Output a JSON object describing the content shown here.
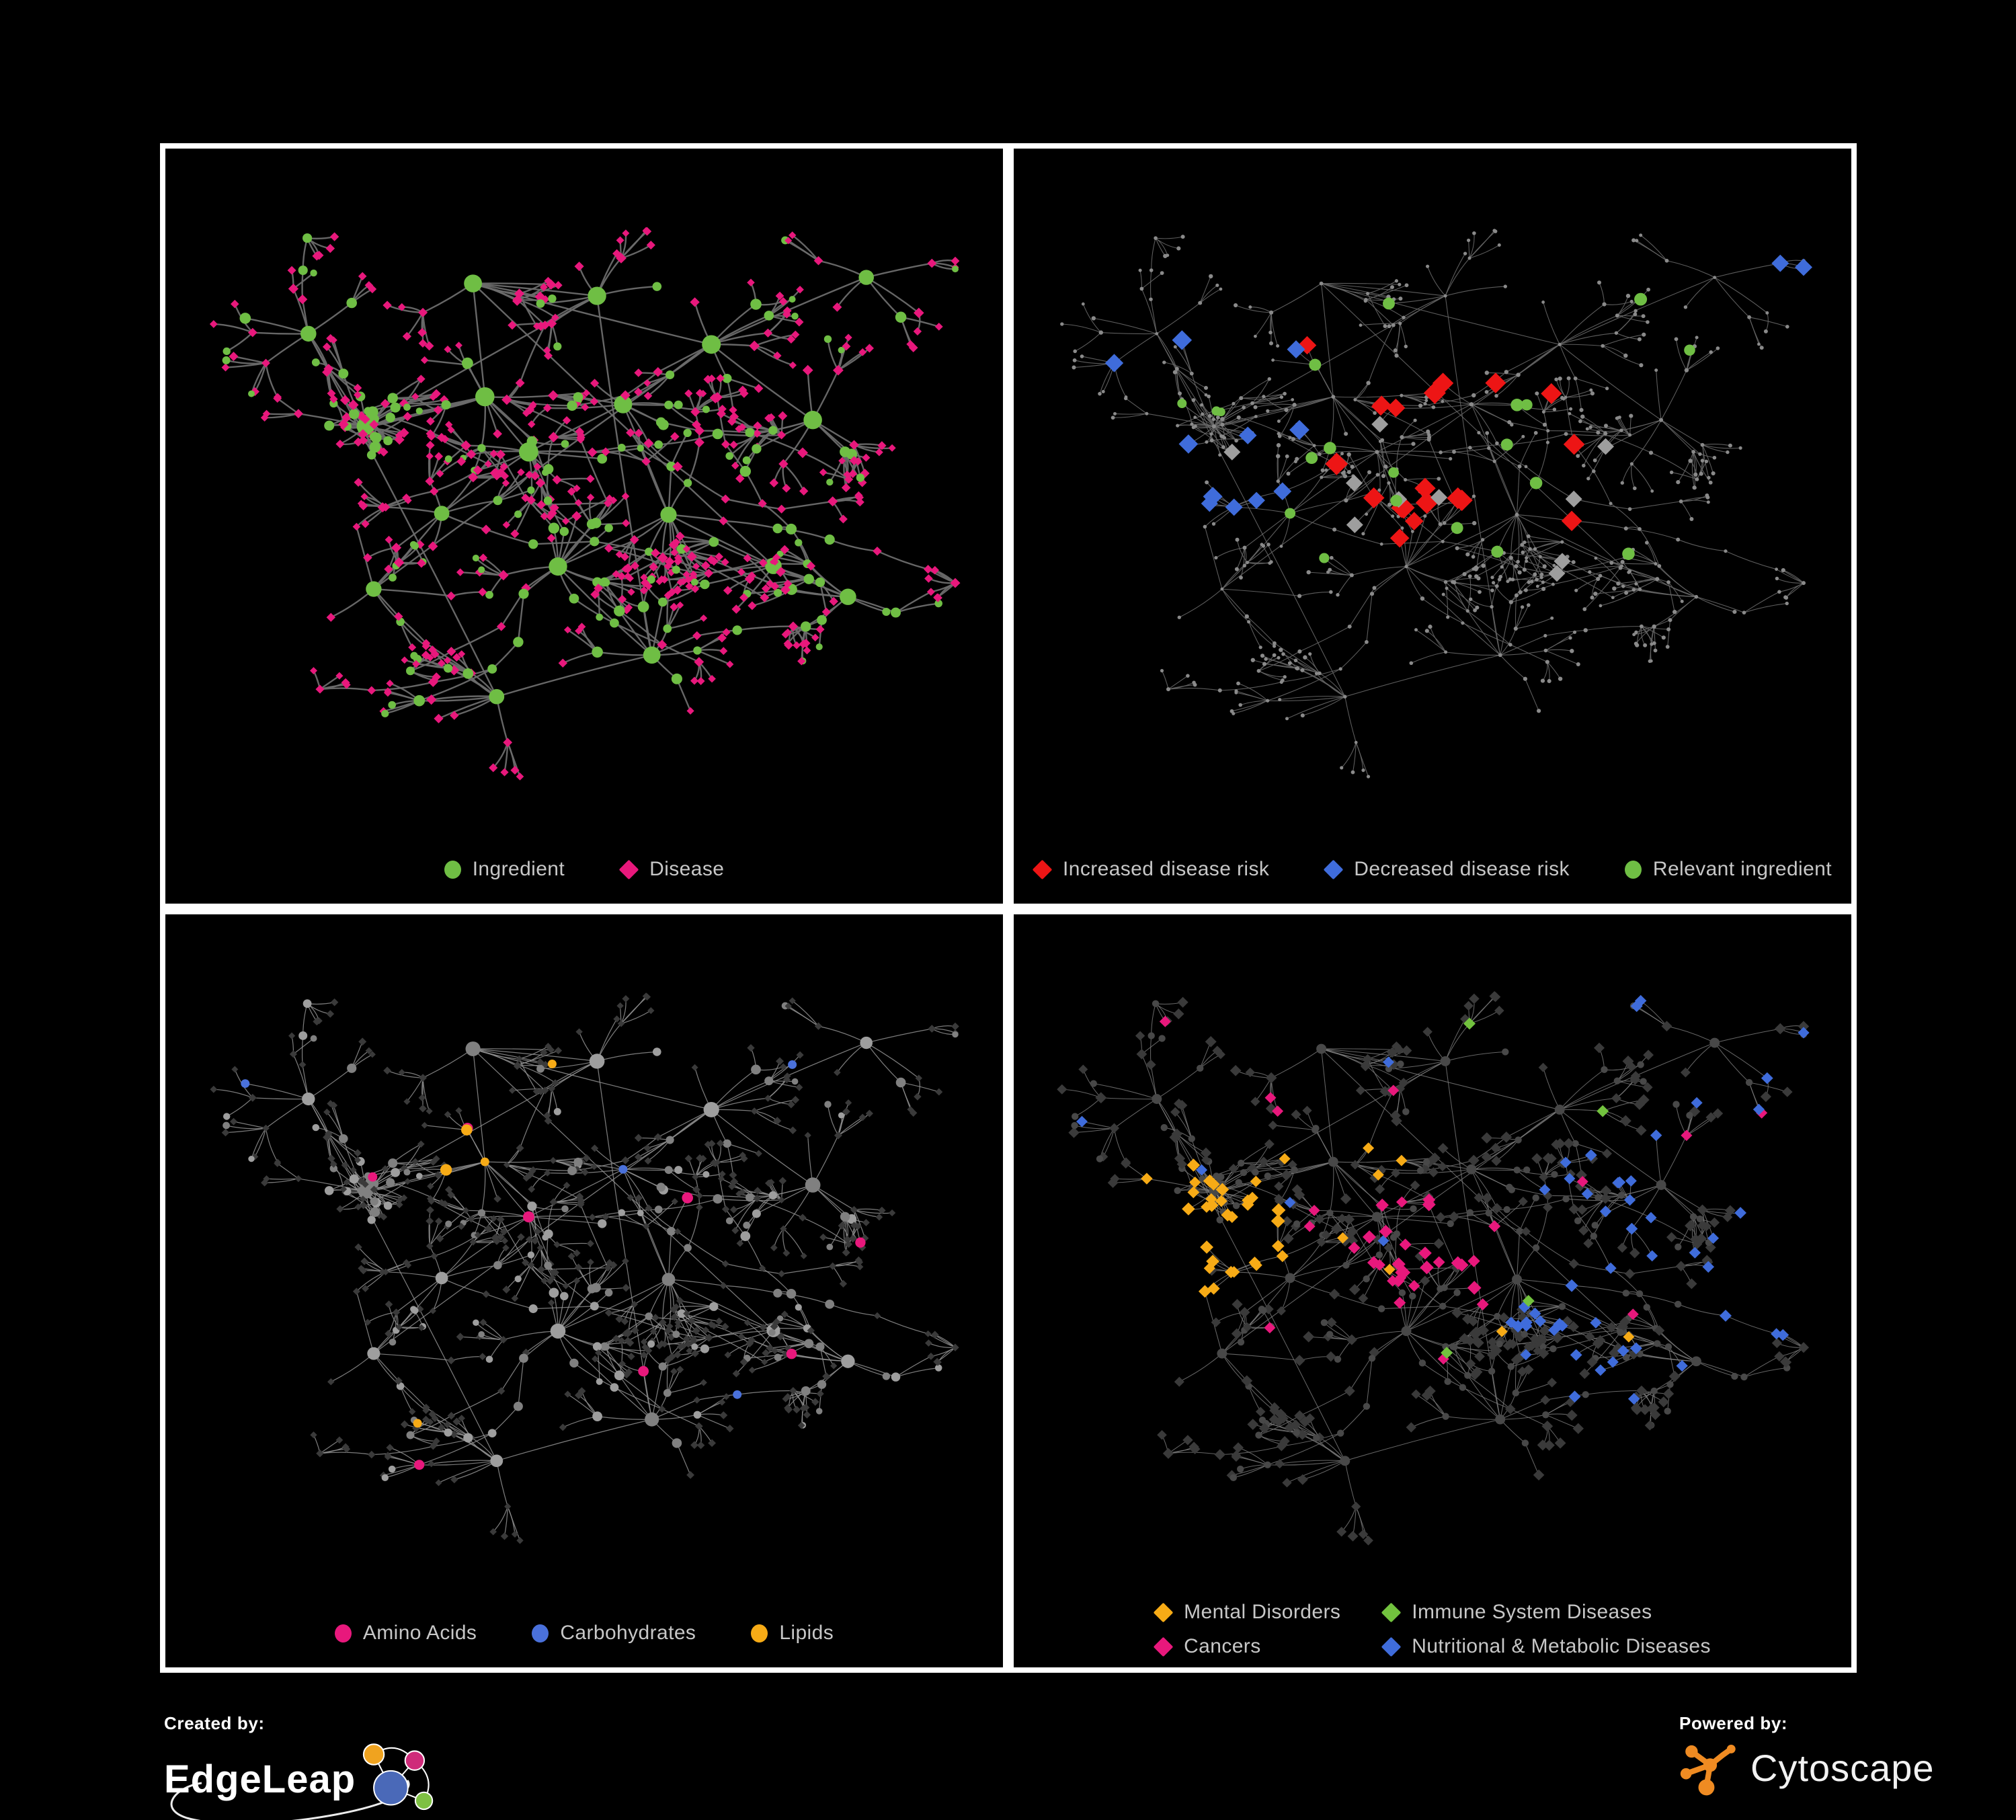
{
  "page": {
    "background": "#000000",
    "panel_border": "#ffffff",
    "panel_background": "#000000",
    "legend_text_color": "#c7c7c7"
  },
  "graph": {
    "type": "network",
    "description": "Ingredient-disease association network rendered four times with different color mappings",
    "node_shapes": {
      "ingredient": "circle",
      "disease": "diamond"
    }
  },
  "palette": {
    "edge1": "#6b6b6b",
    "edge2": "#666666",
    "edge3": "#909090",
    "edge4": "#7e7e7e",
    "neutral": "#9e9e9e",
    "mid": "#808080",
    "tiny": "#8a8a8a",
    "dark": "#3a3a3a",
    "darkCircle": "#484848"
  },
  "panels": [
    {
      "name": "ingredients-and-diseases",
      "legend": [
        {
          "label": "Ingredient",
          "shape": "circle",
          "color": "#6fbe44"
        },
        {
          "label": "Disease",
          "shape": "diamond",
          "color": "#e8187c"
        }
      ]
    },
    {
      "name": "disease-risk",
      "legend": [
        {
          "label": "Increased disease risk",
          "shape": "diamond",
          "color": "#ed1515"
        },
        {
          "label": "Decreased disease risk",
          "shape": "diamond",
          "color": "#3f6cdb"
        },
        {
          "label": "Relevant ingredient",
          "shape": "circle",
          "color": "#6fbe44"
        }
      ]
    },
    {
      "name": "nutrient-classes",
      "legend": [
        {
          "label": "Amino Acids",
          "shape": "circle",
          "color": "#e8187c"
        },
        {
          "label": "Carbohydrates",
          "shape": "circle",
          "color": "#4a71db"
        },
        {
          "label": "Lipids",
          "shape": "circle",
          "color": "#f7ab16"
        }
      ]
    },
    {
      "name": "disease-classes",
      "legend": [
        {
          "label": "Mental Disorders",
          "shape": "diamond",
          "color": "#f7ab16"
        },
        {
          "label": "Immune System Diseases",
          "shape": "diamond",
          "color": "#72c23e"
        },
        {
          "label": "Cancers",
          "shape": "diamond",
          "color": "#e8187c"
        },
        {
          "label": "Nutritional & Metabolic Diseases",
          "shape": "diamond",
          "color": "#3f6cdb"
        }
      ]
    }
  ],
  "footer": {
    "created_by_label": "Created by:",
    "created_by_brand": "EdgeLeap",
    "powered_by_label": "Powered by:",
    "powered_by_brand": "Cytoscape",
    "cytoscape_orange": "#ef8b22",
    "edgeleap_colors": {
      "orange": "#f0a31f",
      "magenta": "#cf2b7a",
      "blue": "#4a69b8",
      "green": "#7ec043"
    }
  }
}
